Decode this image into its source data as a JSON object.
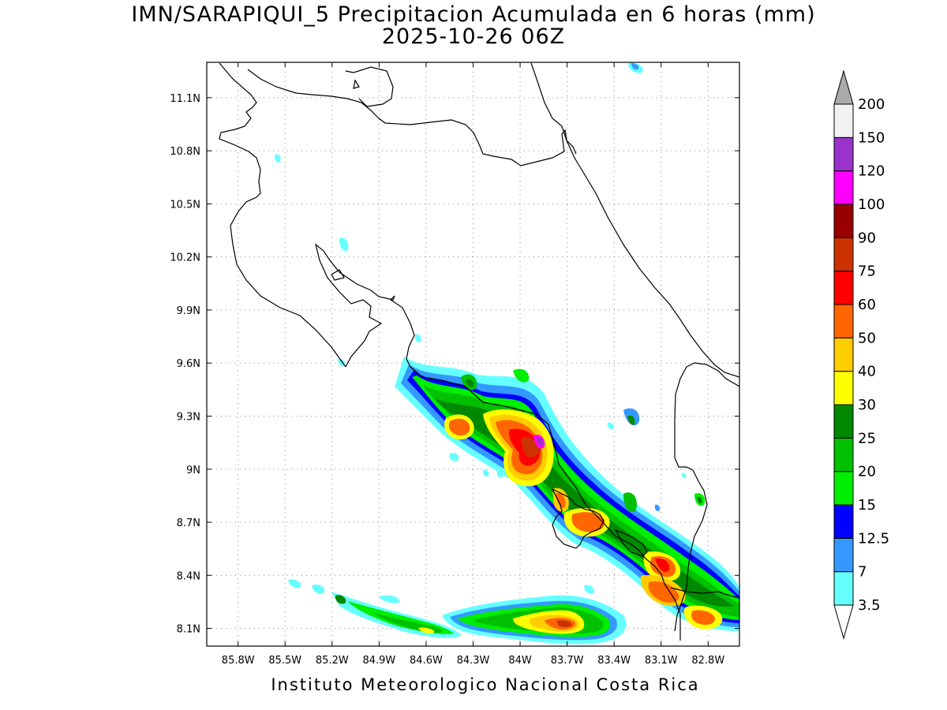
{
  "title_line1": "IMN/SARAPIQUI_5 Precipitacion Acumulada en 6 horas (mm)",
  "title_line2": "2025-10-26 06Z",
  "footer": "Instituto Meteorologico Nacional Costa Rica",
  "map": {
    "lat_labels": [
      "11.1N",
      "10.8N",
      "10.5N",
      "10.2N",
      "9.9N",
      "9.6N",
      "9.3N",
      "9N",
      "8.7N",
      "8.4N",
      "8.1N"
    ],
    "lon_labels": [
      "85.8W",
      "85.5W",
      "85.2W",
      "84.9W",
      "84.6W",
      "84.3W",
      "84W",
      "83.7W",
      "83.4W",
      "83.1W",
      "82.8W"
    ],
    "lon_range": [
      -86.0,
      -82.6
    ],
    "lat_range": [
      8.0,
      11.3
    ],
    "grid": true
  },
  "colorbar": {
    "unit": "mm",
    "levels": [
      "3.5",
      "7",
      "12.5",
      "15",
      "20",
      "25",
      "30",
      "40",
      "50",
      "60",
      "75",
      "90",
      "100",
      "120",
      "150",
      "200"
    ],
    "colors": [
      "#66ffff",
      "#3399ff",
      "#0000ff",
      "#00ee00",
      "#00c000",
      "#008800",
      "#ffff00",
      "#ffcc00",
      "#ff6600",
      "#ff0000",
      "#cc3300",
      "#990000",
      "#ff00ff",
      "#9933cc",
      "#f2f2f2",
      "#aaaaaa"
    ]
  }
}
